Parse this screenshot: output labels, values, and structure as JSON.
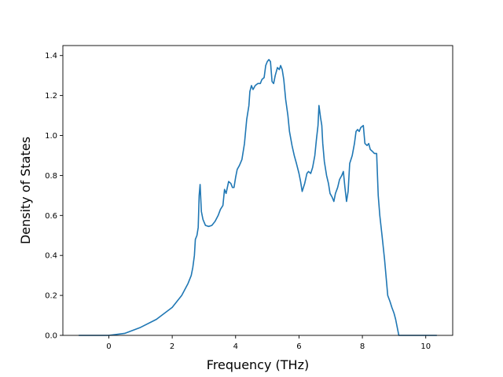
{
  "chart_data": {
    "type": "line",
    "title": "",
    "xlabel": "Frequency (THz)",
    "ylabel": "Density of States",
    "xlim": [
      -1.45,
      10.85
    ],
    "ylim": [
      0.0,
      1.45
    ],
    "x_ticks": [
      0,
      2,
      4,
      6,
      8,
      10
    ],
    "y_ticks": [
      0.0,
      0.2,
      0.4,
      0.6,
      0.8,
      1.0,
      1.2,
      1.4
    ],
    "x_tick_labels": [
      "0",
      "2",
      "4",
      "6",
      "8",
      "10"
    ],
    "y_tick_labels": [
      "0.0",
      "0.2",
      "0.4",
      "0.6",
      "0.8",
      "1.0",
      "1.2",
      "1.4"
    ],
    "grid": false,
    "color": "#1f77b4",
    "series": [
      {
        "points": [
          [
            -0.95,
            0.0
          ],
          [
            0.0,
            0.0
          ],
          [
            0.5,
            0.01
          ],
          [
            1.0,
            0.04
          ],
          [
            1.5,
            0.08
          ],
          [
            2.0,
            0.14
          ],
          [
            2.3,
            0.2
          ],
          [
            2.5,
            0.26
          ],
          [
            2.6,
            0.3
          ],
          [
            2.65,
            0.34
          ],
          [
            2.7,
            0.4
          ],
          [
            2.73,
            0.48
          ],
          [
            2.78,
            0.5
          ],
          [
            2.82,
            0.54
          ],
          [
            2.85,
            0.7
          ],
          [
            2.88,
            0.755
          ],
          [
            2.92,
            0.62
          ],
          [
            2.97,
            0.58
          ],
          [
            3.05,
            0.55
          ],
          [
            3.15,
            0.545
          ],
          [
            3.25,
            0.55
          ],
          [
            3.35,
            0.57
          ],
          [
            3.45,
            0.6
          ],
          [
            3.52,
            0.63
          ],
          [
            3.6,
            0.65
          ],
          [
            3.65,
            0.73
          ],
          [
            3.7,
            0.71
          ],
          [
            3.78,
            0.77
          ],
          [
            3.85,
            0.76
          ],
          [
            3.9,
            0.74
          ],
          [
            3.95,
            0.74
          ],
          [
            4.0,
            0.79
          ],
          [
            4.05,
            0.83
          ],
          [
            4.12,
            0.85
          ],
          [
            4.2,
            0.88
          ],
          [
            4.28,
            0.96
          ],
          [
            4.35,
            1.08
          ],
          [
            4.42,
            1.15
          ],
          [
            4.45,
            1.22
          ],
          [
            4.5,
            1.25
          ],
          [
            4.55,
            1.23
          ],
          [
            4.62,
            1.25
          ],
          [
            4.7,
            1.26
          ],
          [
            4.78,
            1.26
          ],
          [
            4.83,
            1.28
          ],
          [
            4.9,
            1.29
          ],
          [
            4.95,
            1.35
          ],
          [
            5.0,
            1.37
          ],
          [
            5.05,
            1.38
          ],
          [
            5.1,
            1.37
          ],
          [
            5.15,
            1.27
          ],
          [
            5.2,
            1.26
          ],
          [
            5.25,
            1.3
          ],
          [
            5.32,
            1.34
          ],
          [
            5.38,
            1.33
          ],
          [
            5.42,
            1.35
          ],
          [
            5.47,
            1.33
          ],
          [
            5.52,
            1.28
          ],
          [
            5.58,
            1.18
          ],
          [
            5.65,
            1.1
          ],
          [
            5.7,
            1.02
          ],
          [
            5.78,
            0.95
          ],
          [
            5.85,
            0.9
          ],
          [
            5.92,
            0.86
          ],
          [
            6.0,
            0.81
          ],
          [
            6.05,
            0.77
          ],
          [
            6.1,
            0.72
          ],
          [
            6.18,
            0.76
          ],
          [
            6.25,
            0.81
          ],
          [
            6.3,
            0.82
          ],
          [
            6.37,
            0.81
          ],
          [
            6.43,
            0.84
          ],
          [
            6.5,
            0.9
          ],
          [
            6.55,
            0.98
          ],
          [
            6.6,
            1.05
          ],
          [
            6.63,
            1.15
          ],
          [
            6.68,
            1.09
          ],
          [
            6.72,
            1.05
          ],
          [
            6.75,
            0.96
          ],
          [
            6.8,
            0.87
          ],
          [
            6.87,
            0.8
          ],
          [
            6.93,
            0.76
          ],
          [
            6.98,
            0.71
          ],
          [
            7.05,
            0.69
          ],
          [
            7.1,
            0.67
          ],
          [
            7.15,
            0.71
          ],
          [
            7.22,
            0.74
          ],
          [
            7.28,
            0.78
          ],
          [
            7.35,
            0.8
          ],
          [
            7.4,
            0.82
          ],
          [
            7.45,
            0.74
          ],
          [
            7.5,
            0.67
          ],
          [
            7.55,
            0.72
          ],
          [
            7.6,
            0.86
          ],
          [
            7.68,
            0.9
          ],
          [
            7.75,
            0.96
          ],
          [
            7.8,
            1.02
          ],
          [
            7.85,
            1.03
          ],
          [
            7.9,
            1.02
          ],
          [
            7.95,
            1.04
          ],
          [
            8.03,
            1.05
          ],
          [
            8.08,
            0.96
          ],
          [
            8.15,
            0.95
          ],
          [
            8.2,
            0.96
          ],
          [
            8.25,
            0.93
          ],
          [
            8.32,
            0.92
          ],
          [
            8.38,
            0.91
          ],
          [
            8.45,
            0.91
          ],
          [
            8.5,
            0.7
          ],
          [
            8.55,
            0.6
          ],
          [
            8.62,
            0.5
          ],
          [
            8.7,
            0.38
          ],
          [
            8.75,
            0.29
          ],
          [
            8.8,
            0.2
          ],
          [
            8.87,
            0.17
          ],
          [
            8.93,
            0.14
          ],
          [
            9.0,
            0.11
          ],
          [
            9.05,
            0.08
          ],
          [
            9.1,
            0.04
          ],
          [
            9.15,
            0.0
          ],
          [
            10.35,
            0.0
          ]
        ]
      }
    ]
  }
}
